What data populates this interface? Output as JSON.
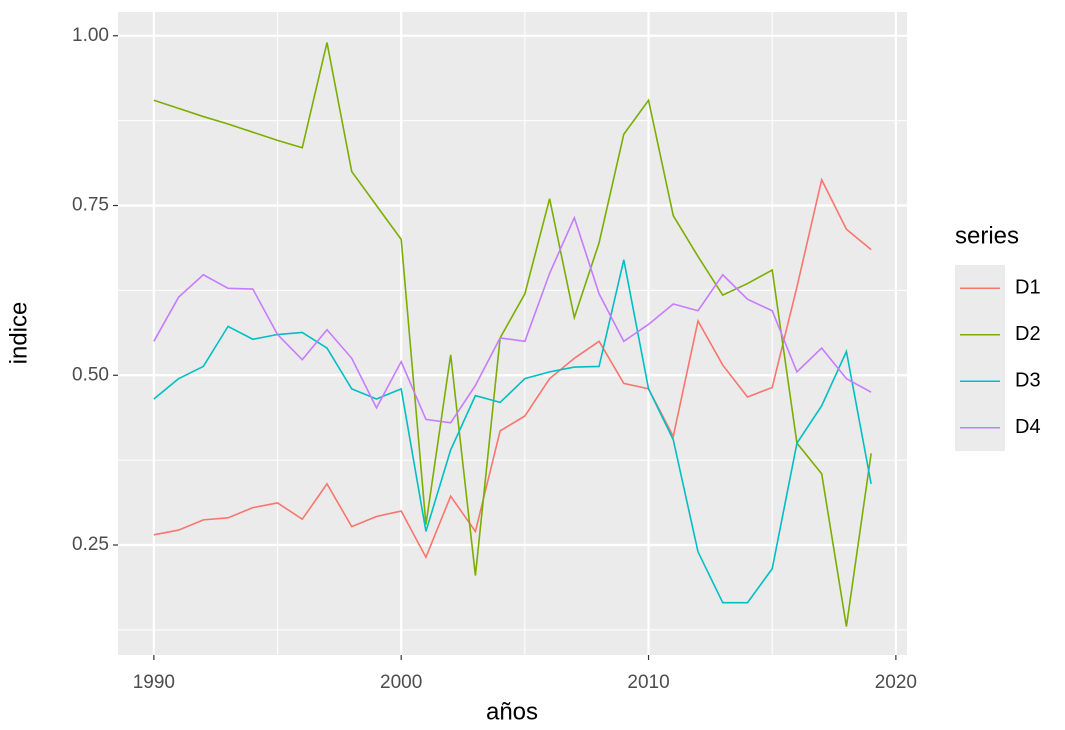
{
  "chart_data": {
    "type": "line",
    "x_label": "años",
    "y_label": "indice",
    "legend_title": "series",
    "x": [
      1990,
      1991,
      1992,
      1993,
      1994,
      1995,
      1996,
      1997,
      1998,
      1999,
      2000,
      2001,
      2002,
      2003,
      2004,
      2005,
      2006,
      2007,
      2008,
      2009,
      2010,
      2011,
      2012,
      2013,
      2014,
      2015,
      2016,
      2017,
      2018,
      2019
    ],
    "series": [
      {
        "name": "D1",
        "color": "#F8766D",
        "values": [
          0.265,
          0.272,
          0.287,
          0.29,
          0.305,
          0.312,
          0.288,
          0.34,
          0.277,
          0.292,
          0.3,
          0.232,
          0.322,
          0.27,
          0.418,
          0.44,
          0.495,
          0.525,
          0.55,
          0.488,
          0.48,
          0.41,
          0.58,
          0.515,
          0.468,
          0.482,
          0.63,
          0.788,
          0.715,
          0.685
        ]
      },
      {
        "name": "D2",
        "color": "#7CAE00",
        "values": [
          0.905,
          0.893,
          0.881,
          0.87,
          0.858,
          0.846,
          0.835,
          0.99,
          0.8,
          0.75,
          0.7,
          0.28,
          0.53,
          0.205,
          0.555,
          0.62,
          0.76,
          0.585,
          0.695,
          0.855,
          0.905,
          0.735,
          0.675,
          0.618,
          0.635,
          0.655,
          0.4,
          0.355,
          0.13,
          0.385
        ]
      },
      {
        "name": "D3",
        "color": "#00BFC4",
        "values": [
          0.465,
          0.495,
          0.513,
          0.572,
          0.553,
          0.56,
          0.563,
          0.54,
          0.48,
          0.465,
          0.48,
          0.27,
          0.39,
          0.47,
          0.46,
          0.495,
          0.505,
          0.512,
          0.513,
          0.67,
          0.48,
          0.405,
          0.24,
          0.165,
          0.165,
          0.215,
          0.4,
          0.455,
          0.535,
          0.34
        ]
      },
      {
        "name": "D4",
        "color": "#C77CFF",
        "values": [
          0.55,
          0.615,
          0.648,
          0.628,
          0.627,
          0.56,
          0.523,
          0.567,
          0.525,
          0.452,
          0.52,
          0.435,
          0.43,
          0.485,
          0.555,
          0.55,
          0.65,
          0.732,
          0.62,
          0.55,
          0.575,
          0.605,
          0.595,
          0.648,
          0.612,
          0.595,
          0.505,
          0.54,
          0.495,
          0.475
        ]
      }
    ],
    "xlim": [
      1988.55,
      2020.45
    ],
    "xticks": [
      1990,
      2000,
      2010,
      2020
    ],
    "ylim": [
      0.088,
      1.035
    ],
    "yticks": [
      {
        "value": 0.25,
        "label": "0.25"
      },
      {
        "value": 0.5,
        "label": "0.50"
      },
      {
        "value": 0.75,
        "label": "0.75"
      },
      {
        "value": 1.0,
        "label": "1.00"
      }
    ],
    "grid": true,
    "legend_position": "right"
  }
}
